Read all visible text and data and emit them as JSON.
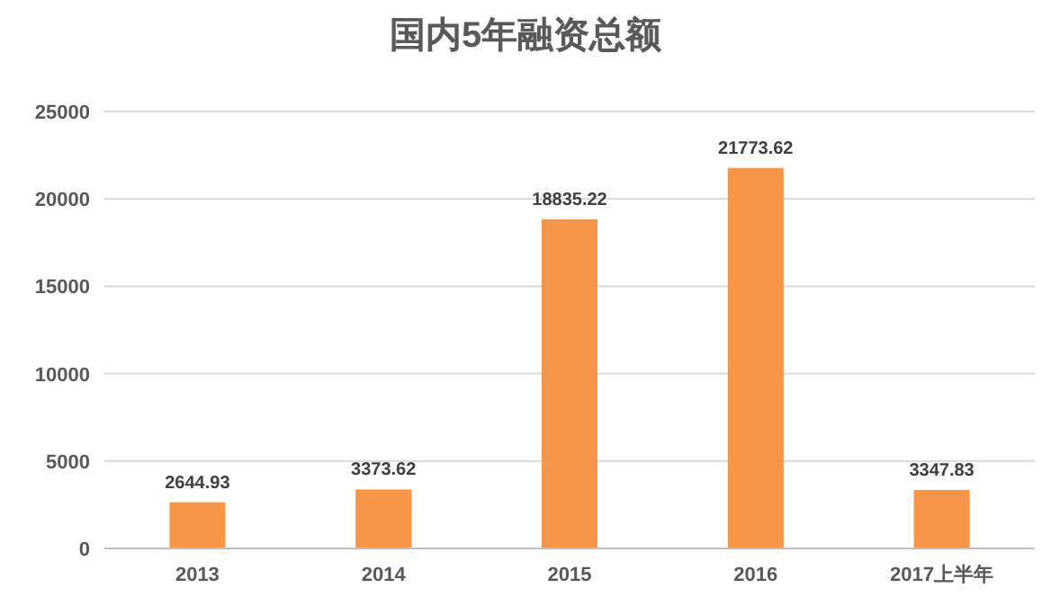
{
  "chart_data": {
    "type": "bar",
    "title": "国内5年融资总额",
    "categories": [
      "2013",
      "2014",
      "2015",
      "2016",
      "2017上半年"
    ],
    "values": [
      2644.93,
      3373.62,
      18835.22,
      21773.62,
      3347.83
    ],
    "color": "#f79646",
    "ylim": [
      0,
      25000
    ],
    "yticks": [
      0,
      5000,
      10000,
      15000,
      20000,
      25000
    ],
    "grid": "y",
    "data_labels": true
  }
}
